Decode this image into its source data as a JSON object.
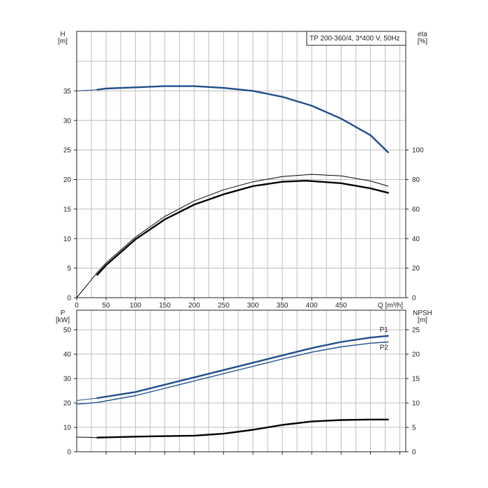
{
  "chart_data": [
    {
      "type": "line",
      "title": "TP 200-360/4, 3*400 V, 50Hz",
      "xlabel": "Q [m³/h]",
      "xlim": [
        0,
        560
      ],
      "xticks": [
        0,
        50,
        100,
        150,
        200,
        250,
        300,
        350,
        400,
        450
      ],
      "ylabel_left": [
        "H",
        "[m]"
      ],
      "ylim_left": [
        0,
        40
      ],
      "yticks_left": [
        0,
        5,
        10,
        15,
        20,
        25,
        30,
        35
      ],
      "ylabel_right": [
        "eta",
        "[%]"
      ],
      "ylim_right": [
        0,
        160
      ],
      "yticks_right": [
        0,
        20,
        40,
        60,
        80,
        100
      ],
      "grid": true,
      "series": [
        {
          "axis": "left",
          "color": "#1f4e8c",
          "style": "thick",
          "values": [
            [
              35,
              35.2
            ],
            [
              50,
              35.4
            ],
            [
              100,
              35.6
            ],
            [
              150,
              35.8
            ],
            [
              200,
              35.8
            ],
            [
              250,
              35.5
            ],
            [
              300,
              35
            ],
            [
              350,
              34
            ],
            [
              400,
              32.5
            ],
            [
              450,
              30.3
            ],
            [
              500,
              27.5
            ],
            [
              530,
              24.6
            ]
          ]
        },
        {
          "axis": "left",
          "color": "#1f4e8c",
          "style": "thin",
          "values": [
            [
              0,
              35
            ],
            [
              35,
              35.2
            ]
          ]
        },
        {
          "axis": "right",
          "color": "#000000",
          "style": "thin",
          "values": [
            [
              0,
              0
            ],
            [
              35,
              17
            ],
            [
              50,
              23.5
            ],
            [
              100,
              41
            ],
            [
              150,
              55
            ],
            [
              200,
              65.5
            ],
            [
              250,
              73
            ],
            [
              300,
              78.5
            ],
            [
              350,
              82
            ],
            [
              400,
              83.5
            ],
            [
              450,
              82.5
            ],
            [
              500,
              79
            ],
            [
              530,
              75.5
            ]
          ]
        },
        {
          "axis": "right",
          "color": "#000000",
          "style": "thick",
          "values": [
            [
              35,
              15.5
            ],
            [
              50,
              22
            ],
            [
              100,
              39.5
            ],
            [
              150,
              53
            ],
            [
              200,
              63
            ],
            [
              250,
              70
            ],
            [
              300,
              75.5
            ],
            [
              350,
              78.5
            ],
            [
              390,
              79.2
            ],
            [
              450,
              77.5
            ],
            [
              500,
              74
            ],
            [
              530,
              71
            ]
          ]
        }
      ]
    },
    {
      "type": "line",
      "xlim": [
        0,
        560
      ],
      "ylabel_left": [
        "P",
        "[kW]"
      ],
      "ylim_left": [
        0,
        58
      ],
      "yticks_left": [
        0,
        10,
        20,
        30,
        40,
        50
      ],
      "ylabel_right": [
        "NPSH",
        "[m]"
      ],
      "ylim_right": [
        0,
        29
      ],
      "yticks_right": [
        0,
        5,
        10,
        15,
        20,
        25
      ],
      "grid": true,
      "series": [
        {
          "name": "P1",
          "axis": "left",
          "color": "#1f4e8c",
          "style": "thick",
          "values": [
            [
              35,
              22
            ],
            [
              100,
              24.5
            ],
            [
              150,
              27.5
            ],
            [
              200,
              30.5
            ],
            [
              250,
              33.5
            ],
            [
              300,
              36.5
            ],
            [
              350,
              39.5
            ],
            [
              400,
              42.5
            ],
            [
              450,
              45
            ],
            [
              500,
              46.8
            ],
            [
              530,
              47.5
            ]
          ]
        },
        {
          "axis": "left",
          "color": "#1f4e8c",
          "style": "thin",
          "values": [
            [
              0,
              21
            ],
            [
              35,
              22
            ]
          ]
        },
        {
          "name": "P2",
          "axis": "left",
          "color": "#1f4e8c",
          "style": "medium",
          "values": [
            [
              0,
              19.5
            ],
            [
              35,
              20.2
            ],
            [
              100,
              23
            ],
            [
              150,
              26
            ],
            [
              200,
              29
            ],
            [
              250,
              32
            ],
            [
              300,
              35
            ],
            [
              350,
              38
            ],
            [
              400,
              40.8
            ],
            [
              450,
              43
            ],
            [
              500,
              44.5
            ],
            [
              530,
              45
            ]
          ]
        },
        {
          "axis": "right",
          "color": "#000000",
          "style": "thick",
          "values": [
            [
              35,
              2.9
            ],
            [
              100,
              3.1
            ],
            [
              150,
              3.2
            ],
            [
              200,
              3.3
            ],
            [
              250,
              3.7
            ],
            [
              300,
              4.5
            ],
            [
              350,
              5.5
            ],
            [
              400,
              6.2
            ],
            [
              450,
              6.5
            ],
            [
              500,
              6.6
            ],
            [
              530,
              6.6
            ]
          ]
        },
        {
          "axis": "right",
          "color": "#000000",
          "style": "thin",
          "values": [
            [
              0,
              3
            ],
            [
              35,
              2.9
            ]
          ]
        }
      ]
    }
  ]
}
